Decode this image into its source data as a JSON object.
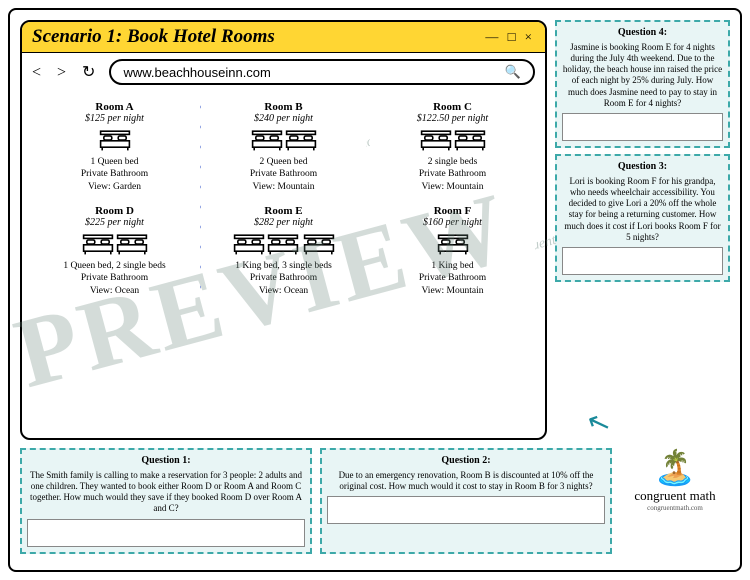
{
  "scenario_title": "Scenario 1: Book Hotel Rooms",
  "url": "www.beachhouseinn.com",
  "win_controls": "— □ ×",
  "nav_btns": "< > ↻",
  "search_icon": "🔍",
  "rooms": [
    {
      "name": "Room A",
      "price": "$125 per night",
      "beds": 1,
      "details": "1 Queen bed\nPrivate Bathroom\nView: Garden"
    },
    {
      "name": "Room B",
      "price": "$240 per night",
      "beds": 2,
      "details": "2 Queen bed\nPrivate Bathroom\nView: Mountain"
    },
    {
      "name": "Room C",
      "price": "$122.50 per night",
      "beds": 2,
      "details": "2 single beds\nPrivate Bathroom\nView: Mountain"
    },
    {
      "name": "Room D",
      "price": "$225 per night",
      "beds": 2,
      "details": "1 Queen bed, 2 single beds\nPrivate Bathroom\nView: Ocean"
    },
    {
      "name": "Room E",
      "price": "$282 per night",
      "beds": 3,
      "details": "1 King bed, 3 single beds\nPrivate Bathroom\nView: Ocean"
    },
    {
      "name": "Room F",
      "price": "$160 per night",
      "beds": 1,
      "details": "1 King bed\nPrivate Bathroom\nView: Mountain"
    }
  ],
  "q4": {
    "title": "Question 4:",
    "text": "Jasmine is booking Room E for 4 nights during the July 4th weekend. Due to the holiday, the beach house inn raised the price of each night by 25% during July. How much does Jasmine need to pay to stay in Room E for 4 nights?"
  },
  "q3": {
    "title": "Question 3:",
    "text": "Lori is booking Room F for his grandpa, who needs wheelchair accessibility. You decided to give Lori a 20% off the whole stay for being a returning customer. How much does it cost if Lori books Room F for 5 nights?"
  },
  "q1": {
    "title": "Question 1:",
    "text": "The Smith family is calling to make a reservation for 3 people: 2 adults and one children. They wanted to book either Room D or Room A and Room C together. How much would they save if they booked Room D over Room A and C?"
  },
  "q2": {
    "title": "Question 2:",
    "text": "Due to an emergency renovation, Room B is discounted at 10% off the original cost. How much would it cost to stay in Room B for 3 nights?"
  },
  "brand": "congruent math",
  "brand_url": "congruentmath.com",
  "watermark": "PREVIEW"
}
